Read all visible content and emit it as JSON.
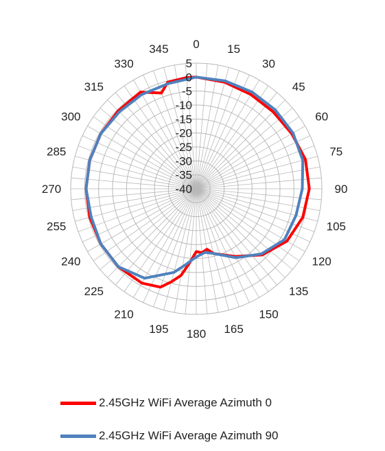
{
  "chart_data": {
    "type": "radar",
    "angular_axis": {
      "unit": "degrees",
      "ticks": [
        "0",
        "15",
        "30",
        "45",
        "60",
        "75",
        "90",
        "105",
        "120",
        "135",
        "150",
        "165",
        "180",
        "195",
        "210",
        "225",
        "240",
        "255",
        "270",
        "285",
        "300",
        "315",
        "330",
        "345"
      ],
      "direction": "clockwise",
      "zero_at": "top"
    },
    "radial_axis": {
      "ticks": [
        "5",
        "0",
        "-5",
        "-10",
        "-15",
        "-20",
        "-25",
        "-30",
        "-35",
        "-40"
      ],
      "range": [
        -40,
        5
      ]
    },
    "legend_position": "bottom",
    "grid": true,
    "series": [
      {
        "name": "2.45GHz WiFi Average Azimuth 0",
        "color": "#ff0000",
        "points": [
          [
            0,
            0.0
          ],
          [
            15,
            -0.5
          ],
          [
            30,
            -1.0
          ],
          [
            45,
            -1.0
          ],
          [
            60,
            -0.5
          ],
          [
            75,
            0.5
          ],
          [
            90,
            0.5
          ],
          [
            105,
            -0.5
          ],
          [
            120,
            -2.5
          ],
          [
            135,
            -6.5
          ],
          [
            150,
            -12.0
          ],
          [
            165,
            -16.0
          ],
          [
            170,
            -18.0
          ],
          [
            175,
            -17.0
          ],
          [
            180,
            -17.5
          ],
          [
            185,
            -13.5
          ],
          [
            190,
            -8.5
          ],
          [
            195,
            -5.5
          ],
          [
            200,
            -2.5
          ],
          [
            210,
            -1.0
          ],
          [
            225,
            -0.5
          ],
          [
            240,
            -0.5
          ],
          [
            255,
            -0.5
          ],
          [
            270,
            -0.5
          ],
          [
            285,
            -0.5
          ],
          [
            300,
            -0.5
          ],
          [
            315,
            -0.5
          ],
          [
            330,
            0.0
          ],
          [
            340,
            -3.5
          ],
          [
            345,
            -0.5
          ],
          [
            355,
            0.0
          ],
          [
            360,
            0.0
          ]
        ]
      },
      {
        "name": "2.45GHz WiFi Average Azimuth 90",
        "color": "#4f81bd",
        "points": [
          [
            0,
            0.0
          ],
          [
            15,
            0.0
          ],
          [
            30,
            0.0
          ],
          [
            45,
            0.0
          ],
          [
            60,
            0.0
          ],
          [
            75,
            -0.5
          ],
          [
            90,
            -2.0
          ],
          [
            105,
            -3.0
          ],
          [
            120,
            -3.5
          ],
          [
            135,
            -7.0
          ],
          [
            150,
            -11.5
          ],
          [
            165,
            -16.0
          ],
          [
            172,
            -17.0
          ],
          [
            178,
            -16.0
          ],
          [
            182,
            -15.0
          ],
          [
            188,
            -12.5
          ],
          [
            195,
            -9.0
          ],
          [
            210,
            -3.0
          ],
          [
            225,
            -0.5
          ],
          [
            240,
            -0.5
          ],
          [
            255,
            -1.0
          ],
          [
            270,
            -0.5
          ],
          [
            285,
            -0.5
          ],
          [
            300,
            -0.5
          ],
          [
            315,
            -1.0
          ],
          [
            330,
            -1.0
          ],
          [
            345,
            -1.0
          ],
          [
            360,
            0.0
          ]
        ]
      }
    ]
  }
}
